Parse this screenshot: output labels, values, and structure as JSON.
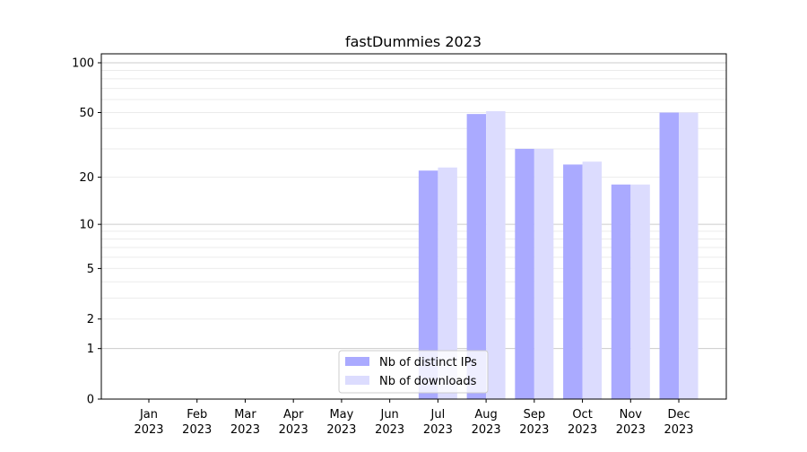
{
  "chart_data": {
    "type": "bar",
    "title": "fastDummies 2023",
    "xlabel": "",
    "ylabel": "",
    "yscale": "log(1+y)",
    "ylim": [
      0,
      113
    ],
    "yticks": [
      0,
      1,
      2,
      5,
      10,
      20,
      50,
      100
    ],
    "ytick_labels": [
      "0",
      "1",
      "2",
      "5",
      "10",
      "20",
      "50",
      "100"
    ],
    "grid": true,
    "categories": [
      "Jan\n2023",
      "Feb\n2023",
      "Mar\n2023",
      "Apr\n2023",
      "May\n2023",
      "Jun\n2023",
      "Jul\n2023",
      "Aug\n2023",
      "Sep\n2023",
      "Oct\n2023",
      "Nov\n2023",
      "Dec\n2023"
    ],
    "category_months": [
      "Jan",
      "Feb",
      "Mar",
      "Apr",
      "May",
      "Jun",
      "Jul",
      "Aug",
      "Sep",
      "Oct",
      "Nov",
      "Dec"
    ],
    "category_year": "2023",
    "series": [
      {
        "name": "Nb of distinct IPs",
        "color": "#aaaaff",
        "values": [
          0,
          0,
          0,
          0,
          0,
          0,
          22,
          49,
          30,
          24,
          18,
          50
        ]
      },
      {
        "name": "Nb of downloads",
        "color": "#dcdcfe",
        "values": [
          0,
          0,
          0,
          0,
          0,
          0,
          23,
          51,
          30,
          25,
          18,
          50
        ]
      }
    ],
    "legend": "lower-center"
  }
}
